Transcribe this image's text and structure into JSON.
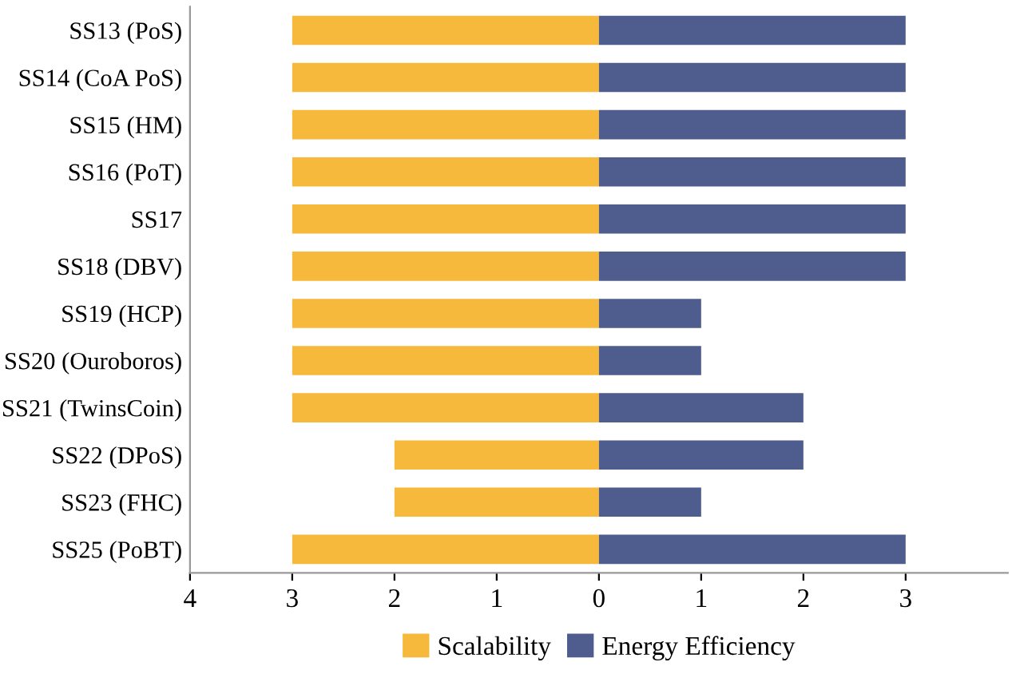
{
  "chart_data": {
    "type": "bar",
    "orientation": "horizontal",
    "categories": [
      "SS13 (PoS)",
      "SS14 (CoA PoS)",
      "SS15 (HM)",
      "SS16 (PoT)",
      "SS17",
      "SS18 (DBV)",
      "SS19 (HCP)",
      "SS20 (Ouroboros)",
      "SS21 (TwinsCoin)",
      "SS22 (DPoS)",
      "SS23 (FHC)",
      "SS25 (PoBT)"
    ],
    "series": [
      {
        "name": "Scalability",
        "color": "#f6b93b",
        "values": [
          -3,
          -3,
          -3,
          -3,
          -3,
          -3,
          -3,
          -3,
          -3,
          -2,
          -2,
          -3
        ]
      },
      {
        "name": "Energy Efficiency",
        "color": "#4f5d8e",
        "values": [
          3,
          3,
          3,
          3,
          3,
          3,
          1,
          1,
          2,
          2,
          1,
          3
        ]
      }
    ],
    "xlim": [
      -4,
      4
    ],
    "xticks": [
      {
        "value": -4,
        "label": "4"
      },
      {
        "value": -3,
        "label": "3"
      },
      {
        "value": -2,
        "label": "2"
      },
      {
        "value": -1,
        "label": "1"
      },
      0,
      1,
      2,
      3
    ],
    "stacked": true,
    "grid": false,
    "legend": "bottom"
  }
}
